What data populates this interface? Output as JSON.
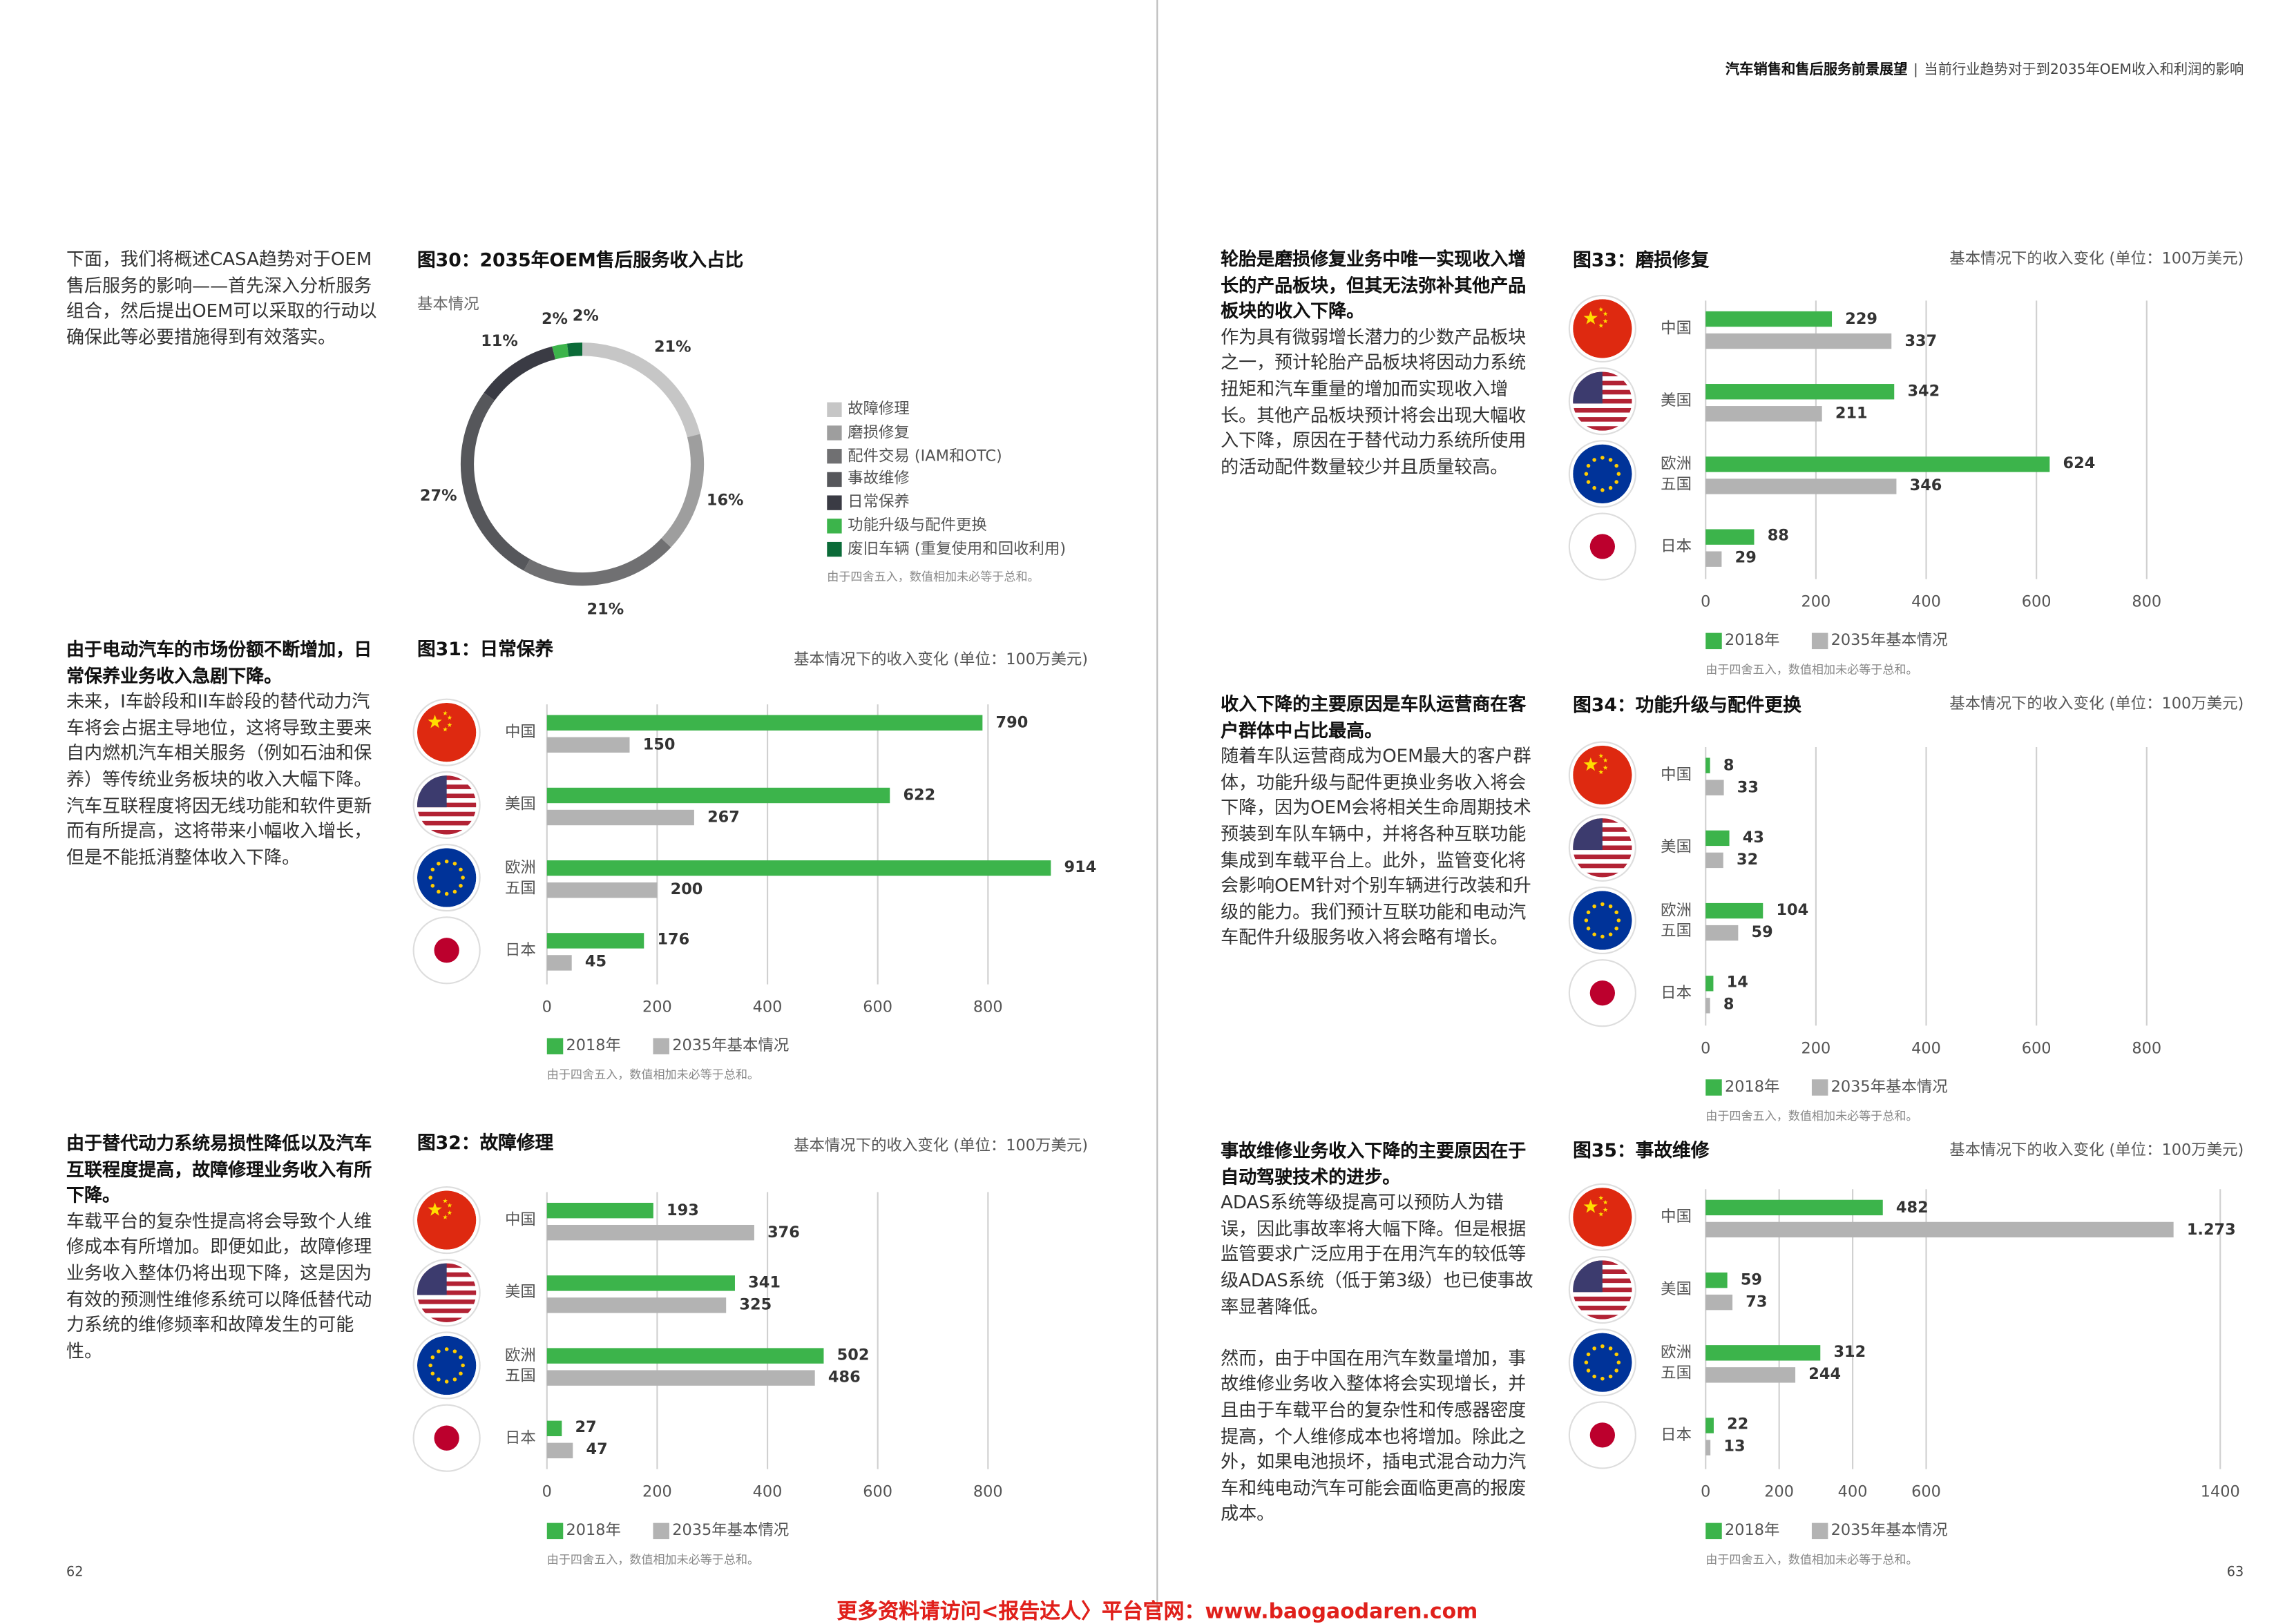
{
  "header": {
    "title": "汽车销售和售后服务前景展望",
    "separator": "|",
    "subtitle": "当前行业趋势对于到2035年OEM收入和利润的影响"
  },
  "text_blocks": [
    {
      "paragraphs": [
        "下面，我们将概述CASA趋势对于OEM售后服务的影响——首先深入分析服务组合，然后提出OEM可以采取的行动以确保此等必要措施得到有效落实。"
      ]
    },
    {
      "heading": "由于电动汽车的市场份额不断增加，日常保养业务收入急剧下降。",
      "paragraphs": [
        "未来，I车龄段和II车龄段的替代动力汽车将会占据主导地位，这将导致主要来自内燃机汽车相关服务（例如石油和保养）等传统业务板块的收入大幅下降。汽车互联程度将因无线功能和软件更新而有所提高，这将带来小幅收入增长，但是不能抵消整体收入下降。"
      ]
    },
    {
      "heading": "由于替代动力系统易损性降低以及汽车互联程度提高，故障修理业务收入有所下降。",
      "paragraphs": [
        "车载平台的复杂性提高将会导致个人维修成本有所增加。即便如此，故障修理业务收入整体仍将出现下降，这是因为有效的预测性维修系统可以降低替代动力系统的维修频率和故障发生的可能性。"
      ]
    },
    {
      "heading": "轮胎是磨损修复业务中唯一实现收入增长的产品板块，但其无法弥补其他产品板块的收入下降。",
      "paragraphs": [
        "作为具有微弱增长潜力的少数产品板块之一，预计轮胎产品板块将因动力系统扭矩和汽车重量的增加而实现收入增长。其他产品板块预计将会出现大幅收入下降，原因在于替代动力系统所使用的活动配件数量较少并且质量较高。"
      ]
    },
    {
      "heading": "收入下降的主要原因是车队运营商在客户群体中占比最高。",
      "paragraphs": [
        "随着车队运营商成为OEM最大的客户群体，功能升级与配件更换业务收入将会下降，因为OEM会将相关生命周期技术预装到车队车辆中，并将各种互联功能集成到车载平台上。此外，监管变化将会影响OEM针对个别车辆进行改装和升级的能力。我们预计互联功能和电动汽车配件升级服务收入将会略有增长。"
      ]
    },
    {
      "heading": "事故维修业务收入下降的主要原因在于自动驾驶技术的进步。",
      "paragraphs": [
        "ADAS系统等级提高可以预防人为错误，因此事故率将大幅下降。但是根据监管要求广泛应用于在用汽车的较低等级ADAS系统（低于第3级）也已使事故率显著降低。",
        "然而，由于中国在用汽车数量增加，事故维修业务收入整体将会实现增长，并且由于车载平台的复杂性和传感器密度提高，个人维修成本也将增加。除此之外，如果电池损坏，插电式混合动力汽车和纯电动汽车可能会面临更高的报废成本。"
      ]
    }
  ],
  "chart_data": [
    {
      "type": "donut",
      "title": "图30：2035年OEM售后服务收入占比",
      "subtitle": "基本情况",
      "categories": [
        "故障修理",
        "磨损修复",
        "配件交易 (IAM和OTC)",
        "事故维修",
        "日常保养",
        "功能升级与配件更换",
        "废旧车辆 (重复使用和回收利用)"
      ],
      "values": [
        21,
        16,
        21,
        27,
        11,
        2,
        2
      ],
      "value_labels": [
        "21%",
        "16%",
        "21%",
        "27%",
        "11%",
        "2%",
        "2%"
      ],
      "colors": [
        "#c6c6c6",
        "#9e9e9e",
        "#707072",
        "#56575b",
        "#3a3b44",
        "#3cb44b",
        "#0b6b38"
      ],
      "note": "由于四舍五入，数值相加未必等于总和。"
    },
    {
      "type": "bar",
      "orientation": "horizontal",
      "title": "图31：日常保养",
      "unit_label": "基本情况下的收入变化 (单位：100万美元)",
      "categories": [
        "中国",
        "美国",
        "欧洲五国",
        "日本"
      ],
      "series": [
        {
          "name": "2018年",
          "color": "#3cb44b",
          "values": [
            790,
            622,
            914,
            176
          ]
        },
        {
          "name": "2035年基本情况",
          "color": "#b3b3b3",
          "values": [
            150,
            267,
            200,
            45
          ]
        }
      ],
      "xlim": [
        0,
        1000
      ],
      "xticks": [
        0,
        200,
        400,
        600,
        800
      ],
      "grid": true,
      "note": "由于四舍五入，数值相加未必等于总和。"
    },
    {
      "type": "bar",
      "orientation": "horizontal",
      "title": "图32：故障修理",
      "unit_label": "基本情况下的收入变化 (单位：100万美元)",
      "categories": [
        "中国",
        "美国",
        "欧洲五国",
        "日本"
      ],
      "series": [
        {
          "name": "2018年",
          "color": "#3cb44b",
          "values": [
            193,
            341,
            502,
            27
          ]
        },
        {
          "name": "2035年基本情况",
          "color": "#b3b3b3",
          "values": [
            376,
            325,
            486,
            47
          ]
        }
      ],
      "xlim": [
        0,
        1000
      ],
      "xticks": [
        0,
        200,
        400,
        600,
        800
      ],
      "grid": true,
      "note": "由于四舍五入，数值相加未必等于总和。"
    },
    {
      "type": "bar",
      "orientation": "horizontal",
      "title": "图33：磨损修复",
      "unit_label": "基本情况下的收入变化 (单位：100万美元)",
      "categories": [
        "中国",
        "美国",
        "欧洲五国",
        "日本"
      ],
      "series": [
        {
          "name": "2018年",
          "color": "#3cb44b",
          "values": [
            229,
            342,
            624,
            88
          ]
        },
        {
          "name": "2035年基本情况",
          "color": "#b3b3b3",
          "values": [
            337,
            211,
            346,
            29
          ]
        }
      ],
      "xlim": [
        0,
        1000
      ],
      "xticks": [
        0,
        200,
        400,
        600,
        800
      ],
      "grid": true,
      "note": "由于四舍五入，数值相加未必等于总和。"
    },
    {
      "type": "bar",
      "orientation": "horizontal",
      "title": "图34：功能升级与配件更换",
      "unit_label": "基本情况下的收入变化 (单位：100万美元)",
      "categories": [
        "中国",
        "美国",
        "欧洲五国",
        "日本"
      ],
      "series": [
        {
          "name": "2018年",
          "color": "#3cb44b",
          "values": [
            8,
            43,
            104,
            14
          ]
        },
        {
          "name": "2035年基本情况",
          "color": "#b3b3b3",
          "values": [
            33,
            32,
            59,
            8
          ]
        }
      ],
      "xlim": [
        0,
        1000
      ],
      "xticks": [
        0,
        200,
        400,
        600,
        800
      ],
      "grid": true,
      "note": "由于四舍五入，数值相加未必等于总和。"
    },
    {
      "type": "bar",
      "orientation": "horizontal",
      "title": "图35：事故维修",
      "unit_label": "基本情况下的收入变化 (单位：100万美元)",
      "categories": [
        "中国",
        "美国",
        "欧洲五国",
        "日本"
      ],
      "series": [
        {
          "name": "2018年",
          "color": "#3cb44b",
          "values": [
            482,
            59,
            312,
            22
          ]
        },
        {
          "name": "2035年基本情况",
          "color": "#b3b3b3",
          "values": [
            1273,
            73,
            244,
            13
          ],
          "value_labels": [
            "1.273",
            "73",
            "244",
            "13"
          ]
        }
      ],
      "xlim": [
        0,
        1500
      ],
      "xticks": [
        0,
        200,
        400,
        600,
        1400
      ],
      "grid": true,
      "note": "由于四舍五入，数值相加未必等于总和。"
    }
  ],
  "page_numbers": [
    "62",
    "63"
  ],
  "footer": "更多资料请访问<报告达人〉平台官网：www.baogaodaren.com"
}
